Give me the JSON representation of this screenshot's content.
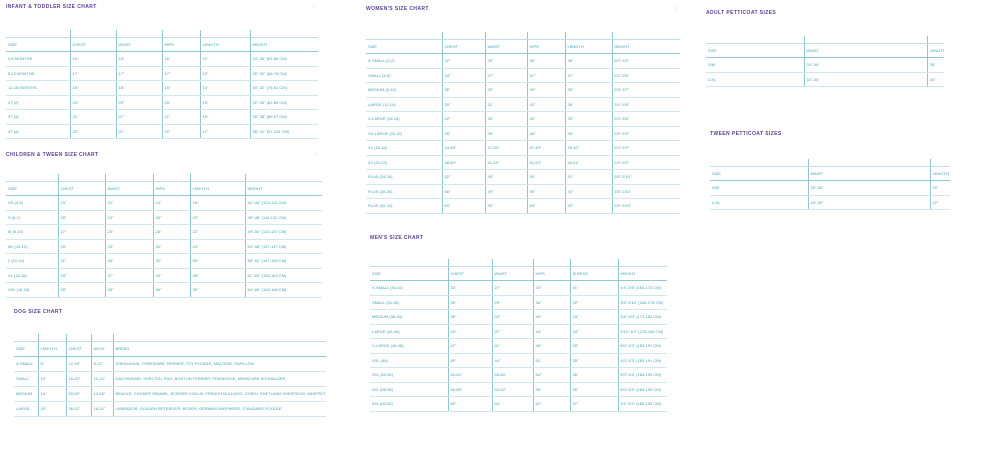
{
  "colors": {
    "title": "#5d3f93",
    "text": "#3f9fb0",
    "rule": "#cde9ed",
    "accent_rule": "#8ccbd4"
  },
  "close_icon": "×",
  "tables": [
    {
      "id": "infant-toddler",
      "title": "INFANT & TODDLER SIZE CHART",
      "headers": [
        "SIZE",
        "CHEST",
        "WAIST",
        "HIPS",
        "LENGTH",
        "HEIGHT"
      ],
      "rows": [
        [
          "0-6 MONTHS",
          "16\"",
          "16\"",
          "16\"",
          "12\"",
          "24\"-26\" (61-66 CM)"
        ],
        [
          "6-12 MONTHS",
          "17\"",
          "17\"",
          "17\"",
          "13\"",
          "26\"-30\" (66-76 CM)"
        ],
        [
          "12-18 MONTHS",
          "18\"",
          "18\"",
          "18\"",
          "14\"",
          "30\"-32\" (76-81 CM)"
        ],
        [
          "2T (2)",
          "20\"",
          "20\"",
          "20\"",
          "15\"",
          "32\"-35\" (81-89 CM)"
        ],
        [
          "3T (3)",
          "21\"",
          "21\"",
          "21\"",
          "16\"",
          "35\"-38\" (89-97 CM)"
        ],
        [
          "4T (4)",
          "22\"",
          "21\"",
          "22\"",
          "17\"",
          "38\"-41\" (97-104 CM)"
        ]
      ]
    },
    {
      "id": "children-tween",
      "title": "CHILDREN & TWEEN SIZE CHART",
      "headers": [
        "SIZE",
        "CHEST",
        "WAIST",
        "HIPS",
        "LENGTH",
        "HEIGHT"
      ],
      "rows": [
        [
          "XS (4-5)",
          "23\"",
          "22\"",
          "24\"",
          "18\"",
          "41\"-44\" (104-112 CM)"
        ],
        [
          "S (6-7)",
          "25\"",
          "23\"",
          "26\"",
          "20\"",
          "45\"-48\" (114-122 CM)"
        ],
        [
          "M (8-10)",
          "27\"",
          "24\"",
          "28\"",
          "22\"",
          "49\"-54\" (124-137 CM)"
        ],
        [
          "ML (10-12)",
          "29\"",
          "25\"",
          "30\"",
          "24\"",
          "54\"-58\" (137-147 CM)"
        ],
        [
          "L (12-14)",
          "31\"",
          "26\"",
          "32\"",
          "26\"",
          "58\"-61\" (147-155 CM)"
        ],
        [
          "XL (14-16)",
          "33\"",
          "27\"",
          "34\"",
          "28\"",
          "61\"-64\" (155-163 CM)"
        ],
        [
          "XXL (16-18)",
          "35\"",
          "28\"",
          "36\"",
          "30\"",
          "64\"-66\" (163-168 CM)"
        ]
      ]
    },
    {
      "id": "dog",
      "title": "DOG SIZE CHART",
      "headers": [
        "SIZE",
        "LENGTH",
        "CHEST",
        "NECK",
        "BREED"
      ],
      "rows": [
        [
          "X-SMALL",
          "8\"",
          "12-16\"",
          "8-12\"",
          "CHIHUAHUA, YORKSHIRE TERRIER, TOY POODLE, MALTESE, PAPILLON"
        ],
        [
          "SMALL",
          "12\"",
          "16-20\"",
          "10-14\"",
          "DACHSHUND, SHIH TZU, PUG, BOSTON TERRIER, PEKINGESE, MINIATURE SCHNAUZER"
        ],
        [
          "MEDIUM",
          "16\"",
          "20-26\"",
          "14-18\"",
          "BEAGLE, COCKER SPANIEL, BORDER COLLIE, FRENCH BULLDOG, CORGI, SHETLAND SHEEPDOG, WHIPPET"
        ],
        [
          "LARGE",
          "20\"",
          "26-32\"",
          "16-20\"",
          "LABRADOR, GOLDEN RETRIEVER, BOXER, GERMAN SHEPHERD, STANDARD POODLE"
        ]
      ]
    },
    {
      "id": "womens",
      "title": "WOMEN'S SIZE CHART",
      "headers": [
        "SIZE",
        "CHEST",
        "WAIST",
        "HIPS",
        "LENGTH",
        "HEIGHT"
      ],
      "rows": [
        [
          "X-SMALL (0-2)",
          "32\"",
          "25\"",
          "35\"",
          "36\"",
          "5'0\"-5'4\""
        ],
        [
          "SMALL (4-6)",
          "34\"",
          "27\"",
          "37\"",
          "37\"",
          "5'2\"-5'6\""
        ],
        [
          "MEDIUM (8-10)",
          "36\"",
          "29\"",
          "39\"",
          "38\"",
          "5'3\"-5'7\""
        ],
        [
          "LARGE (12-14)",
          "39\"",
          "32\"",
          "42\"",
          "38\"",
          "5'4\"-5'8\""
        ],
        [
          "X-LARGE (16-18)",
          "42\"",
          "35\"",
          "45\"",
          "39\"",
          "5'4\"-5'8\""
        ],
        [
          "XX-LARGE (20-22)",
          "45\"",
          "38\"",
          "48\"",
          "39\"",
          "5'5\"-5'9\""
        ],
        [
          "1X (16-18)",
          "44-46\"",
          "37-39\"",
          "47-49\"",
          "39-40\"",
          "5'4\"-5'9\""
        ],
        [
          "2X (20-22)",
          "48-50\"",
          "41-43\"",
          "51-53\"",
          "40-41\"",
          "5'4\"-5'9\""
        ],
        [
          "PLUS (24-26)",
          "52\"",
          "45\"",
          "55\"",
          "41\"",
          "5'5\"-5'10\""
        ],
        [
          "PLUS (28-30)",
          "56\"",
          "49\"",
          "59\"",
          "42\"",
          "5'5\"-5'10\""
        ],
        [
          "PLUS (32-34)",
          "60\"",
          "53\"",
          "63\"",
          "42\"",
          "5'5\"-5'10\""
        ]
      ]
    },
    {
      "id": "mens",
      "title": "MEN'S SIZE CHART",
      "headers": [
        "SIZE",
        "CHEST",
        "WAIST",
        "HIPS",
        "SLEEVE",
        "HEIGHT"
      ],
      "rows": [
        [
          "X-SMALL (30-32)",
          "33\"",
          "27\"",
          "34\"",
          "31\"",
          "5'4\"-5'8\" (163-173 CM)"
        ],
        [
          "SMALL (34-36)",
          "35\"",
          "29\"",
          "36\"",
          "32\"",
          "5'6\"-5'10\" (168-178 CM)"
        ],
        [
          "MEDIUM (38-40)",
          "39\"",
          "33\"",
          "40\"",
          "33\"",
          "5'8\"-6'0\" (173-183 CM)"
        ],
        [
          "LARGE (42-44)",
          "43\"",
          "37\"",
          "44\"",
          "34\"",
          "5'10\"-6'2\" (178-188 CM)"
        ],
        [
          "X-LARGE (46-48)",
          "47\"",
          "41\"",
          "48\"",
          "35\"",
          "6'0\"-6'3\" (183-191 CM)"
        ],
        [
          "XXL (50)",
          "50\"",
          "44\"",
          "51\"",
          "35\"",
          "6'0\"-6'3\" (183-191 CM)"
        ],
        [
          "3XL (52-54)",
          "52-54\"",
          "46-48\"",
          "54\"",
          "36\"",
          "6'0\"-6'4\" (183-193 CM)"
        ],
        [
          "4XL (56-58)",
          "56-58\"",
          "50-52\"",
          "58\"",
          "36\"",
          "6'0\"-6'4\" (183-193 CM)"
        ],
        [
          "5XL (60-62)",
          "60\"",
          "54\"",
          "62\"",
          "37\"",
          "6'1\"-6'4\" (185-193 CM)"
        ]
      ]
    },
    {
      "id": "adult-petticoat",
      "title": "ADULT PETTICOAT SIZES",
      "headers": [
        "SIZE",
        "WAIST",
        "LENGTH"
      ],
      "rows": [
        [
          "S/M",
          "24\"-34\"",
          "26\""
        ],
        [
          "L/XL",
          "34\"-44\"",
          "26\""
        ]
      ]
    },
    {
      "id": "tween-petticoat",
      "title": "TWEEN PETTICOAT SIZES",
      "headers": [
        "SIZE",
        "WAIST",
        "LENGTH"
      ],
      "rows": [
        [
          "S/M",
          "20\"-26\"",
          "20\""
        ],
        [
          "L/XL",
          "24\"-30\"",
          "22\""
        ]
      ]
    }
  ]
}
